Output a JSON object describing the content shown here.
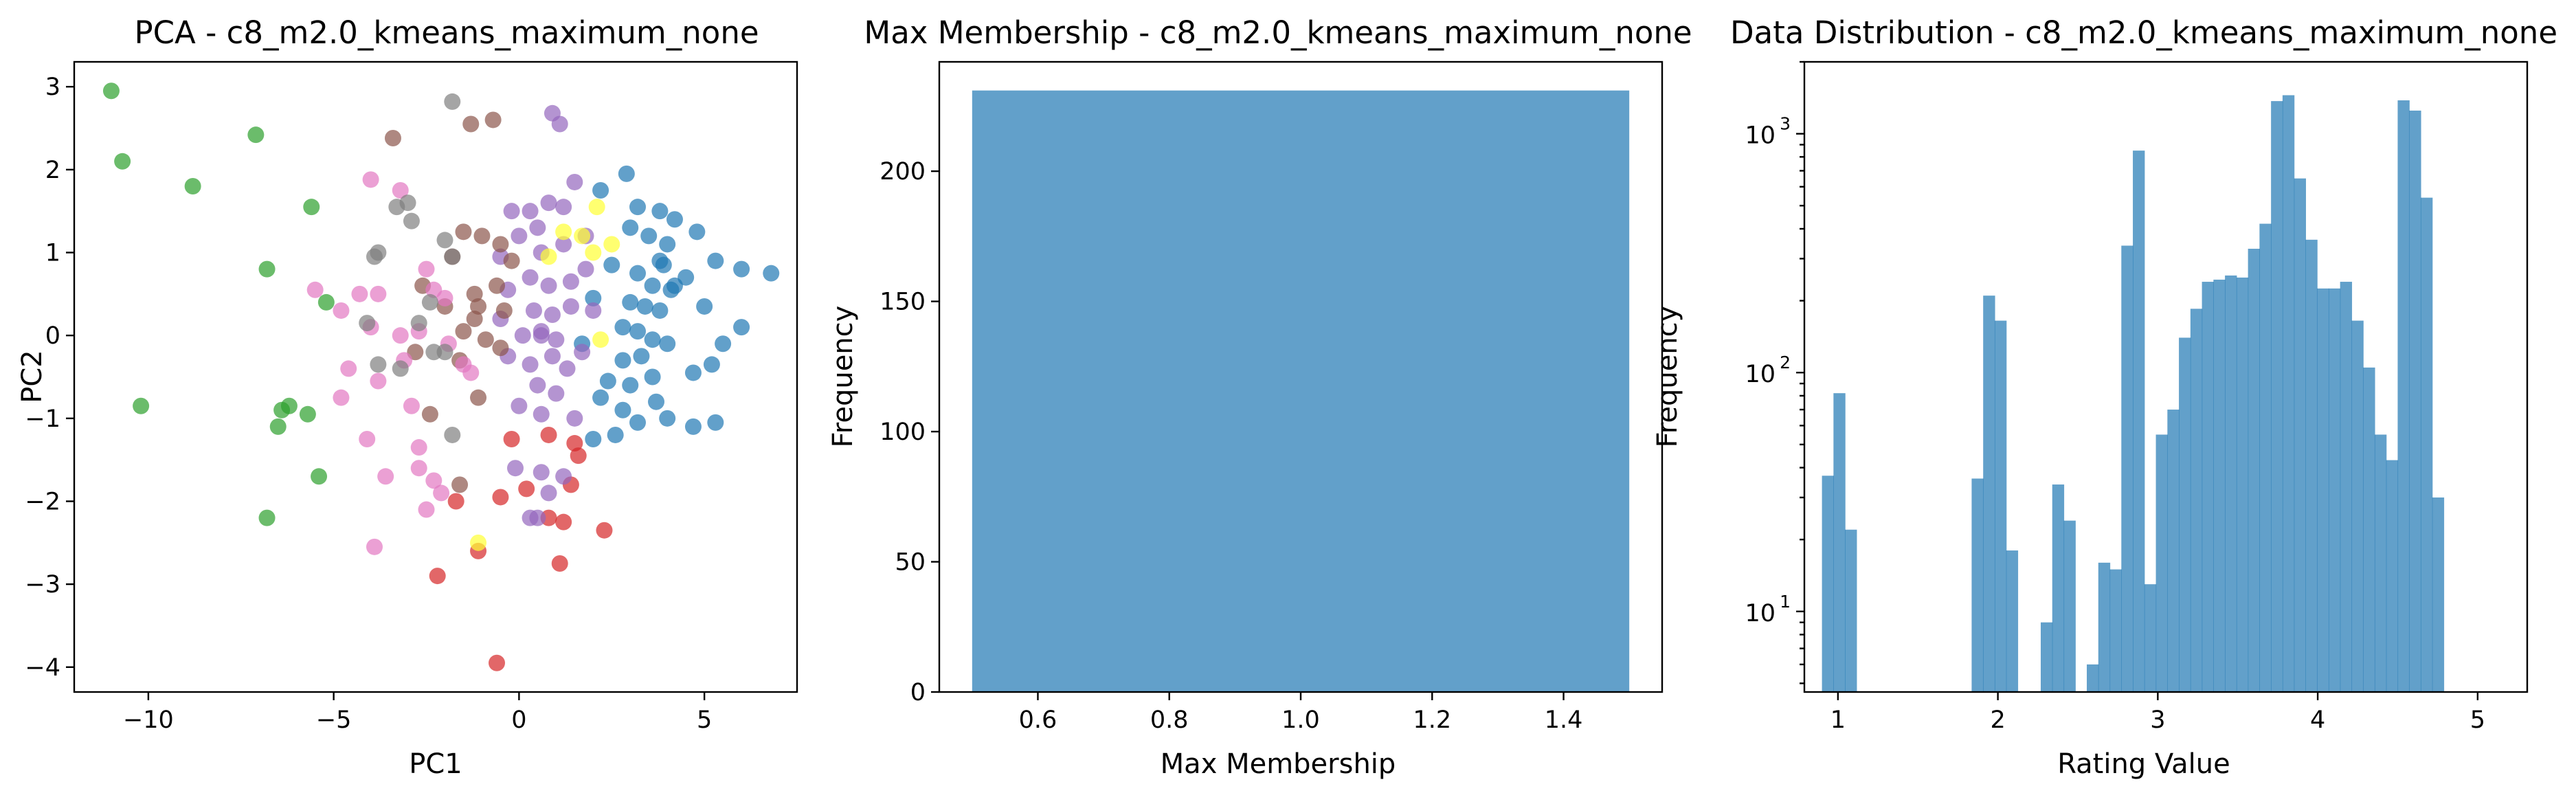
{
  "chart_data": [
    {
      "type": "scatter",
      "title": "PCA - c8_m2.0_kmeans_maximum_none",
      "xlabel": "PC1",
      "ylabel": "PC2",
      "xlim": [
        -12,
        7.5
      ],
      "ylim": [
        -4.3,
        3.3
      ],
      "xticks": [
        -10,
        -5,
        0,
        5
      ],
      "xtick_labels": [
        "−10",
        "−5",
        "0",
        "5"
      ],
      "yticks": [
        3,
        2,
        1,
        0,
        -1,
        -2,
        -3,
        -4
      ],
      "ytick_labels": [
        "3",
        "2",
        "1",
        "0",
        "−1",
        "−2",
        "−3",
        "−4"
      ],
      "grid": false,
      "legend": "none",
      "series": [
        {
          "color": "#1f77b4",
          "points": [
            [
              2.9,
              1.95
            ],
            [
              3.2,
              1.55
            ],
            [
              3.8,
              1.5
            ],
            [
              4.2,
              1.4
            ],
            [
              4.8,
              1.25
            ],
            [
              5.3,
              0.9
            ],
            [
              6.0,
              0.8
            ],
            [
              6.8,
              0.75
            ],
            [
              2.2,
              1.75
            ],
            [
              3.0,
              1.3
            ],
            [
              3.5,
              1.2
            ],
            [
              4.0,
              1.1
            ],
            [
              3.8,
              0.9
            ],
            [
              2.5,
              0.85
            ],
            [
              3.2,
              0.75
            ],
            [
              3.6,
              0.6
            ],
            [
              4.1,
              0.55
            ],
            [
              4.5,
              0.7
            ],
            [
              5.0,
              0.35
            ],
            [
              6.0,
              0.1
            ],
            [
              5.5,
              -0.1
            ],
            [
              3.0,
              0.4
            ],
            [
              3.4,
              0.35
            ],
            [
              3.8,
              0.3
            ],
            [
              2.8,
              0.1
            ],
            [
              3.2,
              0.05
            ],
            [
              3.6,
              -0.05
            ],
            [
              4.0,
              -0.1
            ],
            [
              4.7,
              -0.45
            ],
            [
              5.2,
              -0.35
            ],
            [
              3.3,
              -0.25
            ],
            [
              2.8,
              -0.3
            ],
            [
              2.4,
              -0.55
            ],
            [
              3.0,
              -0.6
            ],
            [
              3.7,
              -0.8
            ],
            [
              2.2,
              -0.75
            ],
            [
              2.8,
              -0.9
            ],
            [
              3.2,
              -1.05
            ],
            [
              4.0,
              -1.0
            ],
            [
              4.7,
              -1.1
            ],
            [
              5.3,
              -1.05
            ],
            [
              2.0,
              -1.25
            ],
            [
              2.6,
              -1.2
            ],
            [
              3.6,
              -0.5
            ],
            [
              4.2,
              0.6
            ],
            [
              2.0,
              0.45
            ],
            [
              1.7,
              -0.1
            ],
            [
              3.9,
              0.85
            ]
          ]
        },
        {
          "color": "#ff7f0e",
          "points": []
        },
        {
          "color": "#2ca02c",
          "points": [
            [
              -11.0,
              2.95
            ],
            [
              -10.7,
              2.1
            ],
            [
              -8.8,
              1.8
            ],
            [
              -7.1,
              2.42
            ],
            [
              -5.6,
              1.55
            ],
            [
              -6.8,
              0.8
            ],
            [
              -5.2,
              0.4
            ],
            [
              -10.2,
              -0.85
            ],
            [
              -6.4,
              -0.9
            ],
            [
              -6.2,
              -0.85
            ],
            [
              -5.7,
              -0.95
            ],
            [
              -6.5,
              -1.1
            ],
            [
              -5.4,
              -1.7
            ],
            [
              -6.8,
              -2.2
            ]
          ]
        },
        {
          "color": "#d62728",
          "points": [
            [
              -0.2,
              -1.25
            ],
            [
              0.8,
              -1.2
            ],
            [
              1.5,
              -1.3
            ],
            [
              1.6,
              -1.45
            ],
            [
              -1.7,
              -2.0
            ],
            [
              -0.5,
              -1.95
            ],
            [
              0.2,
              -1.85
            ],
            [
              1.4,
              -1.8
            ],
            [
              0.8,
              -2.2
            ],
            [
              1.2,
              -2.25
            ],
            [
              2.3,
              -2.35
            ],
            [
              -1.1,
              -2.6
            ],
            [
              1.1,
              -2.75
            ],
            [
              -2.2,
              -2.9
            ],
            [
              -0.6,
              -3.95
            ]
          ]
        },
        {
          "color": "#9467bd",
          "points": [
            [
              0.9,
              2.68
            ],
            [
              1.1,
              2.55
            ],
            [
              0.3,
              1.5
            ],
            [
              0.8,
              1.6
            ],
            [
              1.5,
              1.85
            ],
            [
              -0.2,
              1.5
            ],
            [
              0.5,
              1.3
            ],
            [
              1.2,
              1.55
            ],
            [
              0.0,
              1.2
            ],
            [
              0.6,
              1.0
            ],
            [
              1.2,
              1.1
            ],
            [
              -0.5,
              0.95
            ],
            [
              0.3,
              0.7
            ],
            [
              0.8,
              0.6
            ],
            [
              1.4,
              0.65
            ],
            [
              1.8,
              0.8
            ],
            [
              -0.3,
              0.55
            ],
            [
              0.4,
              0.3
            ],
            [
              0.9,
              0.25
            ],
            [
              1.4,
              0.35
            ],
            [
              2.0,
              0.3
            ],
            [
              -0.5,
              0.2
            ],
            [
              0.1,
              0.0
            ],
            [
              0.6,
              0.05
            ],
            [
              1.0,
              -0.05
            ],
            [
              1.7,
              -0.2
            ],
            [
              -0.3,
              -0.25
            ],
            [
              0.3,
              -0.35
            ],
            [
              0.9,
              -0.25
            ],
            [
              1.3,
              -0.4
            ],
            [
              0.5,
              -0.6
            ],
            [
              1.0,
              -0.7
            ],
            [
              0.0,
              -0.85
            ],
            [
              0.6,
              -0.95
            ],
            [
              1.5,
              -1.0
            ],
            [
              -0.1,
              -1.6
            ],
            [
              0.6,
              -1.65
            ],
            [
              1.2,
              -1.7
            ],
            [
              0.5,
              -2.2
            ],
            [
              0.3,
              -2.2
            ],
            [
              0.8,
              -1.9
            ],
            [
              1.8,
              1.2
            ],
            [
              0.6,
              0.0
            ]
          ]
        },
        {
          "color": "#8c564b",
          "points": [
            [
              -3.4,
              2.38
            ],
            [
              -1.3,
              2.55
            ],
            [
              -0.7,
              2.6
            ],
            [
              -1.5,
              1.25
            ],
            [
              -1.0,
              1.2
            ],
            [
              -0.5,
              1.1
            ],
            [
              -1.8,
              0.95
            ],
            [
              -0.2,
              0.9
            ],
            [
              -2.6,
              0.6
            ],
            [
              -1.2,
              0.5
            ],
            [
              -0.6,
              0.6
            ],
            [
              -2.0,
              0.35
            ],
            [
              -1.1,
              0.35
            ],
            [
              -0.4,
              0.3
            ],
            [
              -2.8,
              -0.2
            ],
            [
              -1.5,
              0.05
            ],
            [
              -0.9,
              -0.05
            ],
            [
              -0.5,
              -0.15
            ],
            [
              -1.6,
              -0.3
            ],
            [
              -2.4,
              -0.95
            ],
            [
              -1.1,
              -0.75
            ],
            [
              -1.6,
              -1.8
            ],
            [
              -1.2,
              0.2
            ]
          ]
        },
        {
          "color": "#e377c2",
          "points": [
            [
              -4.0,
              1.88
            ],
            [
              -3.2,
              1.75
            ],
            [
              -2.5,
              0.8
            ],
            [
              -2.3,
              0.55
            ],
            [
              -5.5,
              0.55
            ],
            [
              -4.8,
              0.3
            ],
            [
              -4.3,
              0.5
            ],
            [
              -3.8,
              0.5
            ],
            [
              -3.2,
              0.0
            ],
            [
              -2.7,
              0.05
            ],
            [
              -4.0,
              0.1
            ],
            [
              -4.6,
              -0.4
            ],
            [
              -3.1,
              -0.3
            ],
            [
              -1.5,
              -0.35
            ],
            [
              -1.3,
              -0.45
            ],
            [
              -3.8,
              -0.55
            ],
            [
              -4.8,
              -0.75
            ],
            [
              -2.9,
              -0.85
            ],
            [
              -4.1,
              -1.25
            ],
            [
              -2.7,
              -1.35
            ],
            [
              -3.6,
              -1.7
            ],
            [
              -2.7,
              -1.6
            ],
            [
              -2.1,
              -1.9
            ],
            [
              -2.3,
              -1.75
            ],
            [
              -2.5,
              -2.1
            ],
            [
              -3.9,
              -2.55
            ],
            [
              -2.0,
              0.45
            ],
            [
              -1.9,
              -0.1
            ]
          ]
        },
        {
          "color": "#7f7f7f",
          "points": [
            [
              -1.8,
              2.82
            ],
            [
              -3.0,
              1.6
            ],
            [
              -3.3,
              1.55
            ],
            [
              -2.9,
              1.38
            ],
            [
              -2.0,
              1.15
            ],
            [
              -3.8,
              1.0
            ],
            [
              -3.9,
              0.95
            ],
            [
              -1.8,
              0.95
            ],
            [
              -2.4,
              0.4
            ],
            [
              -4.1,
              0.15
            ],
            [
              -2.7,
              0.15
            ],
            [
              -2.3,
              -0.2
            ],
            [
              -2.0,
              -0.2
            ],
            [
              -3.2,
              -0.4
            ],
            [
              -3.8,
              -0.35
            ],
            [
              -1.8,
              -1.2
            ]
          ]
        },
        {
          "color": "#bcbd22",
          "points": []
        },
        {
          "color": "#ffff33",
          "points": [
            [
              2.1,
              1.55
            ],
            [
              2.5,
              1.1
            ],
            [
              1.7,
              1.2
            ],
            [
              1.2,
              1.25
            ],
            [
              0.8,
              0.95
            ],
            [
              2.0,
              1.0
            ],
            [
              2.2,
              -0.05
            ],
            [
              -1.1,
              -2.5
            ]
          ]
        }
      ]
    },
    {
      "type": "bar",
      "title": "Max Membership - c8_m2.0_kmeans_maximum_none",
      "xlabel": "Max Membership",
      "ylabel": "Frequency",
      "xlim": [
        0.45,
        1.55
      ],
      "ylim": [
        0,
        242
      ],
      "xticks": [
        0.6,
        0.8,
        1.0,
        1.2,
        1.4
      ],
      "xtick_labels": [
        "0.6",
        "0.8",
        "1.0",
        "1.2",
        "1.4"
      ],
      "yticks": [
        0,
        50,
        100,
        150,
        200
      ],
      "ytick_labels": [
        "0",
        "50",
        "100",
        "150",
        "200"
      ],
      "bins": [
        [
          0.5,
          1.5
        ]
      ],
      "values": [
        231
      ],
      "grid": false,
      "legend": "none"
    },
    {
      "type": "bar",
      "title": "Data Distribution - c8_m2.0_kmeans_maximum_none",
      "xlabel": "Rating Value",
      "ylabel": "Frequency",
      "yscale": "log",
      "xlim": [
        0.79,
        5.31
      ],
      "ylim": [
        4.6,
        2000
      ],
      "xticks": [
        1,
        2,
        3,
        4,
        5
      ],
      "xtick_labels": [
        "1",
        "2",
        "3",
        "4",
        "5"
      ],
      "yticks": [
        10,
        100,
        1000
      ],
      "ytick_labels": [
        "10",
        "10",
        "10"
      ],
      "ytick_exponents": [
        "1",
        "2",
        "3"
      ],
      "bin_start": 0.9,
      "bin_width": 0.072,
      "values": [
        37,
        82,
        22,
        0,
        0,
        0,
        0,
        0,
        0,
        0,
        0,
        0,
        0,
        36,
        210,
        165,
        18,
        0,
        0,
        9,
        34,
        24,
        0,
        6,
        16,
        15,
        340,
        850,
        13,
        55,
        70,
        140,
        185,
        240,
        245,
        255,
        250,
        330,
        420,
        1370,
        1450,
        650,
        360,
        225,
        225,
        240,
        165,
        105,
        55,
        43,
        1380,
        1250,
        540,
        30
      ],
      "grid": false,
      "legend": "none"
    }
  ]
}
